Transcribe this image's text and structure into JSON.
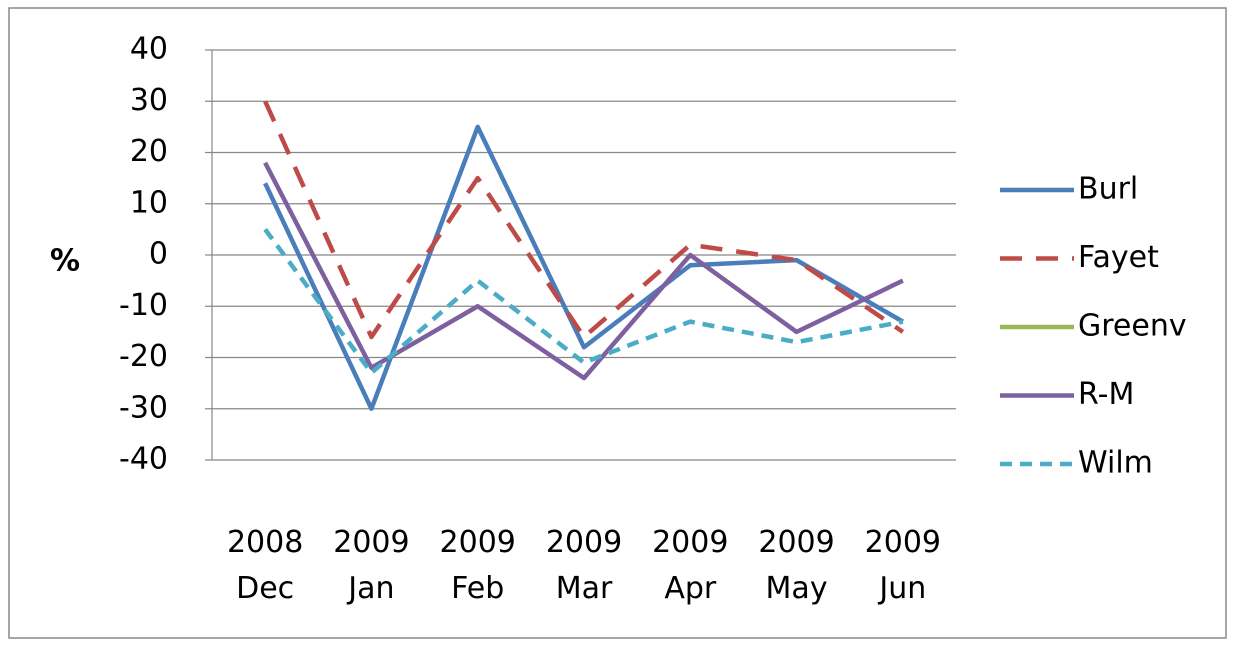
{
  "chart_data": {
    "type": "line",
    "y_label": "%",
    "categories": [
      "2008 Dec",
      "2009 Jan",
      "2009 Feb",
      "2009 Mar",
      "2009 Apr",
      "2009 May",
      "2009 Jun"
    ],
    "series": [
      {
        "name": "Burl",
        "color": "#4a7ebb",
        "dash": "solid",
        "values": [
          14,
          -30,
          25,
          -18,
          -2,
          -1,
          -13
        ]
      },
      {
        "name": "Fayet",
        "color": "#be4b48",
        "dash": "dashed",
        "values": [
          30,
          -16,
          15,
          -16,
          2,
          -1,
          -15
        ]
      },
      {
        "name": "Greenv",
        "color": "#98b954",
        "dash": "solid",
        "values": [
          null,
          null,
          null,
          null,
          null,
          null,
          null
        ]
      },
      {
        "name": "R-M",
        "color": "#7d60a0",
        "dash": "solid",
        "values": [
          18,
          -22,
          -10,
          -24,
          0,
          -15,
          -5
        ]
      },
      {
        "name": "Wilm",
        "color": "#4bacc6",
        "dash": "short",
        "values": [
          5,
          -23,
          -5,
          -21,
          -13,
          -17,
          -13
        ]
      }
    ],
    "ylim": [
      -40,
      40
    ],
    "yticks": [
      -40,
      -30,
      -20,
      -10,
      0,
      10,
      20,
      30,
      40
    ],
    "grid": true,
    "legend": "right"
  }
}
